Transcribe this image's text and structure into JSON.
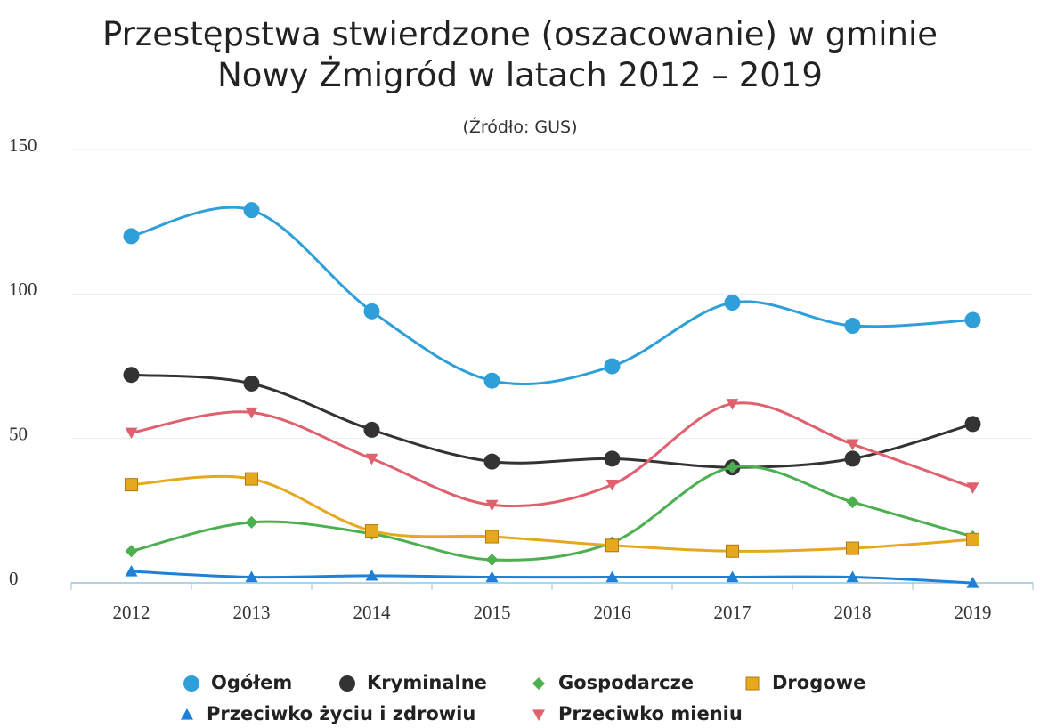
{
  "chart_data": {
    "type": "line",
    "title": "Przestępstwa stwierdzone (oszacowanie) w gminie Nowy Żmigród w latach 2012 – 2019",
    "subtitle": "(Źródło: GUS)",
    "categories": [
      "2012",
      "2013",
      "2014",
      "2015",
      "2016",
      "2017",
      "2018",
      "2019"
    ],
    "series": [
      {
        "name": "Ogółem",
        "color": "#2e9fd9",
        "marker": "circle",
        "values": [
          120,
          129,
          94,
          70,
          75,
          97,
          89,
          91
        ]
      },
      {
        "name": "Kryminalne",
        "color": "#333333",
        "marker": "circle",
        "values": [
          72,
          69,
          53,
          42,
          43,
          40,
          43,
          55
        ]
      },
      {
        "name": "Gospodarcze",
        "color": "#4caf50",
        "marker": "diamond",
        "values": [
          11,
          21,
          17,
          8,
          14,
          40,
          28,
          16
        ]
      },
      {
        "name": "Drogowe",
        "color": "#e6a81c",
        "marker": "square",
        "values": [
          34,
          36,
          18,
          16,
          13,
          11,
          12,
          15
        ]
      },
      {
        "name": "Przeciwko życiu i zdrowiu",
        "color": "#1f80d8",
        "marker": "triangle",
        "values": [
          4,
          2,
          2.5,
          2,
          2,
          2,
          2,
          0
        ]
      },
      {
        "name": "Przeciwko mieniu",
        "color": "#e0606e",
        "marker": "triangle-down",
        "values": [
          52,
          59,
          43,
          27,
          34,
          62,
          48,
          33
        ]
      }
    ],
    "ylim": [
      0,
      150
    ],
    "yticks": [
      0,
      50,
      100,
      150
    ],
    "grid": true
  }
}
